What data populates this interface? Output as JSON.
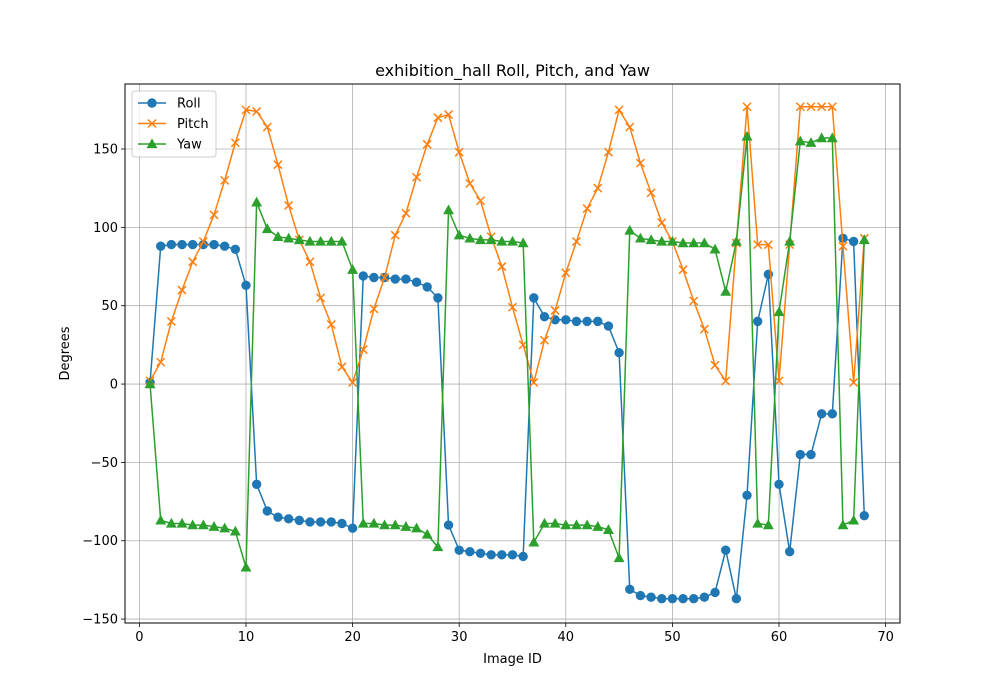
{
  "chart_data": {
    "type": "line",
    "title": "exhibition_hall Roll, Pitch, and Yaw",
    "xlabel": "Image ID",
    "ylabel": "Degrees",
    "xlim": [
      -1.35,
      71.35
    ],
    "ylim": [
      -152.5,
      191.5
    ],
    "xticks": [
      0,
      10,
      20,
      30,
      40,
      50,
      60,
      70
    ],
    "yticks": [
      -150,
      -100,
      -50,
      0,
      50,
      100,
      150
    ],
    "grid": true,
    "legend_position": "upper left",
    "x": [
      1,
      2,
      3,
      4,
      5,
      6,
      7,
      8,
      9,
      10,
      11,
      12,
      13,
      14,
      15,
      16,
      17,
      18,
      19,
      20,
      21,
      22,
      23,
      24,
      25,
      26,
      27,
      28,
      29,
      30,
      31,
      32,
      33,
      34,
      35,
      36,
      37,
      38,
      39,
      40,
      41,
      42,
      43,
      44,
      45,
      46,
      47,
      48,
      49,
      50,
      51,
      52,
      53,
      54,
      55,
      56,
      57,
      58,
      59,
      60,
      61,
      62,
      63,
      64,
      65,
      66,
      67,
      68
    ],
    "series": [
      {
        "name": "Roll",
        "color": "#1f77b4",
        "marker": "circle",
        "values": [
          1,
          88,
          89,
          89,
          89,
          89,
          89,
          88,
          86,
          63,
          -64,
          -81,
          -85,
          -86,
          -87,
          -88,
          -88,
          -88,
          -89,
          -92,
          69,
          68,
          68,
          67,
          67,
          65,
          62,
          55,
          -90,
          -106,
          -107,
          -108,
          -109,
          -109,
          -109,
          -110,
          55,
          43,
          41,
          41,
          40,
          40,
          40,
          37,
          20,
          -131,
          -135,
          -136,
          -137,
          -137,
          -137,
          -137,
          -136,
          -133,
          -106,
          -137,
          -71,
          40,
          70,
          -64,
          -107,
          -45,
          -45,
          -19,
          -19,
          93,
          91,
          -84
        ]
      },
      {
        "name": "Pitch",
        "color": "#ff7f0e",
        "marker": "x",
        "values": [
          2,
          14,
          40,
          60,
          78,
          91,
          108,
          130,
          154,
          175,
          174,
          164,
          140,
          114,
          92,
          78,
          55,
          38,
          11,
          1,
          22,
          48,
          68,
          95,
          109,
          132,
          153,
          170,
          172,
          148,
          128,
          117,
          94,
          75,
          49,
          25,
          1,
          28,
          47,
          71,
          91,
          112,
          125,
          148,
          175,
          164,
          141,
          122,
          103,
          91,
          73,
          53,
          35,
          12,
          2,
          90,
          177,
          89,
          89,
          2,
          89,
          177,
          177,
          177,
          177,
          88,
          1,
          93
        ]
      },
      {
        "name": "Yaw",
        "color": "#2ca02c",
        "marker": "triangle-up",
        "values": [
          0,
          -87,
          -89,
          -89,
          -90,
          -90,
          -91,
          -92,
          -94,
          -117,
          116,
          99,
          94,
          93,
          92,
          91,
          91,
          91,
          91,
          73,
          -89,
          -89,
          -90,
          -90,
          -91,
          -92,
          -96,
          -104,
          111,
          95,
          93,
          92,
          92,
          91,
          91,
          90,
          -101,
          -89,
          -89,
          -90,
          -90,
          -90,
          -91,
          -93,
          -111,
          98,
          93,
          92,
          91,
          91,
          90,
          90,
          90,
          86,
          59,
          91,
          158,
          -89,
          -90,
          46,
          91,
          155,
          154,
          157,
          157,
          -90,
          -87,
          92
        ]
      }
    ]
  }
}
